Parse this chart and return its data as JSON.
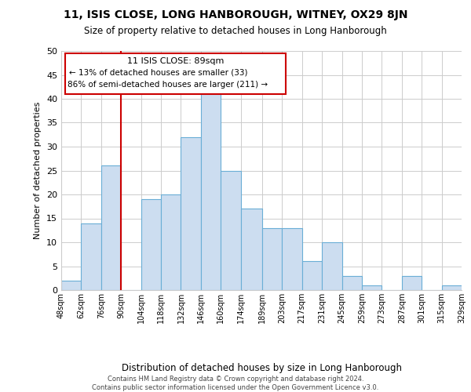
{
  "title": "11, ISIS CLOSE, LONG HANBOROUGH, WITNEY, OX29 8JN",
  "subtitle": "Size of property relative to detached houses in Long Hanborough",
  "xlabel": "Distribution of detached houses by size in Long Hanborough",
  "ylabel": "Number of detached properties",
  "bar_color": "#ccddf0",
  "bar_edge_color": "#6aaed6",
  "background_color": "#ffffff",
  "grid_color": "#cccccc",
  "bins": [
    48,
    62,
    76,
    90,
    104,
    118,
    132,
    146,
    160,
    174,
    189,
    203,
    217,
    231,
    245,
    259,
    273,
    287,
    301,
    315,
    329
  ],
  "values": [
    2,
    14,
    26,
    0,
    19,
    20,
    32,
    42,
    25,
    17,
    13,
    13,
    6,
    10,
    3,
    1,
    0,
    3,
    0,
    1
  ],
  "tick_labels": [
    "48sqm",
    "62sqm",
    "76sqm",
    "90sqm",
    "104sqm",
    "118sqm",
    "132sqm",
    "146sqm",
    "160sqm",
    "174sqm",
    "189sqm",
    "203sqm",
    "217sqm",
    "231sqm",
    "245sqm",
    "259sqm",
    "273sqm",
    "287sqm",
    "301sqm",
    "315sqm",
    "329sqm"
  ],
  "vline_x": 90,
  "vline_color": "#cc0000",
  "annotation_title": "11 ISIS CLOSE: 89sqm",
  "annotation_line1": "← 13% of detached houses are smaller (33)",
  "annotation_line2": "86% of semi-detached houses are larger (211) →",
  "annotation_box_color": "#ffffff",
  "annotation_box_edge": "#cc0000",
  "ylim": [
    0,
    50
  ],
  "yticks": [
    0,
    5,
    10,
    15,
    20,
    25,
    30,
    35,
    40,
    45,
    50
  ],
  "footer_line1": "Contains HM Land Registry data © Crown copyright and database right 2024.",
  "footer_line2": "Contains public sector information licensed under the Open Government Licence v3.0."
}
